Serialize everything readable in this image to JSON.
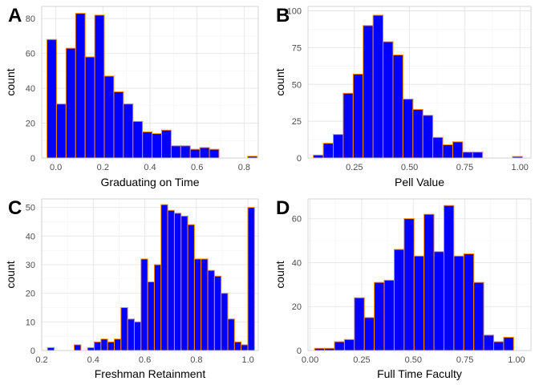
{
  "colors": {
    "bar_fill": "#0000ff",
    "bar_outline": "#ff8c00",
    "grid": "#e5e5e5",
    "border": "#cccccc",
    "tick_text": "#4d4d4d"
  },
  "chart_data": [
    {
      "type": "bar",
      "panel": "A",
      "xlabel": "Graduating on Time",
      "ylabel": "count",
      "xlim": [
        -0.06,
        0.86
      ],
      "ylim": [
        0,
        87
      ],
      "x_ticks": [
        0.0,
        0.2,
        0.4,
        0.6,
        0.8
      ],
      "x_tick_labels": [
        "0.0",
        "0.2",
        "0.4",
        "0.6",
        "0.8"
      ],
      "y_ticks": [
        0,
        20,
        40,
        60,
        80
      ],
      "y_tick_labels": [
        "0",
        "20",
        "40",
        "60",
        "80"
      ],
      "bin_width": 0.0406,
      "bin_centers": [
        -0.0175,
        0.0231,
        0.0637,
        0.1043,
        0.1449,
        0.1855,
        0.2261,
        0.2667,
        0.3073,
        0.3479,
        0.3885,
        0.4291,
        0.4697,
        0.5103,
        0.5509,
        0.5915,
        0.6321,
        0.6727,
        0.7133,
        0.7539,
        0.7945,
        0.8351
      ],
      "values": [
        68,
        31,
        63,
        83,
        58,
        82,
        47,
        38,
        31,
        21,
        15,
        14,
        16,
        7,
        7,
        5,
        6,
        5,
        0,
        0,
        0,
        1
      ],
      "grid": true
    },
    {
      "type": "bar",
      "panel": "B",
      "xlabel": "Pell Value",
      "ylabel": "count",
      "xlim": [
        0.04,
        1.05
      ],
      "ylim": [
        0,
        103
      ],
      "x_ticks": [
        0.25,
        0.5,
        0.75,
        1.0
      ],
      "x_tick_labels": [
        "0.25",
        "0.50",
        "0.75",
        "1.00"
      ],
      "y_ticks": [
        0,
        25,
        50,
        75,
        100
      ],
      "y_tick_labels": [
        "0",
        "25",
        "50",
        "75",
        "100"
      ],
      "bin_width": 0.0451,
      "bin_centers": [
        0.0868,
        0.1319,
        0.177,
        0.2221,
        0.2672,
        0.3123,
        0.3574,
        0.4025,
        0.4476,
        0.4927,
        0.5378,
        0.5829,
        0.628,
        0.6731,
        0.7182,
        0.7633,
        0.8084,
        0.8535,
        0.8986,
        0.9437,
        0.9888
      ],
      "values": [
        2,
        10,
        16,
        44,
        57,
        90,
        97,
        79,
        70,
        40,
        33,
        29,
        14,
        9,
        11,
        4,
        4,
        0,
        0,
        0,
        1
      ],
      "grid": true
    },
    {
      "type": "bar",
      "panel": "C",
      "xlabel": "Freshman Retainment",
      "ylabel": "count",
      "xlim": [
        0.2,
        1.04
      ],
      "ylim": [
        0,
        53
      ],
      "x_ticks": [
        0.2,
        0.4,
        0.6,
        0.8,
        1.0
      ],
      "x_tick_labels": [
        "0.2",
        "0.4",
        "0.6",
        "0.8",
        "1.0"
      ],
      "y_ticks": [
        0,
        10,
        20,
        30,
        40,
        50
      ],
      "y_tick_labels": [
        "0",
        "10",
        "20",
        "30",
        "40",
        "50"
      ],
      "bin_width": 0.0259,
      "bin_centers": [
        0.2355,
        0.2614,
        0.2873,
        0.3132,
        0.3391,
        0.365,
        0.3909,
        0.4168,
        0.4427,
        0.4686,
        0.4945,
        0.5204,
        0.5463,
        0.5722,
        0.5981,
        0.624,
        0.6499,
        0.6758,
        0.7017,
        0.7276,
        0.7535,
        0.7794,
        0.8053,
        0.8312,
        0.8571,
        0.883,
        0.9089,
        0.9348,
        0.9607,
        0.9866,
        1.0125
      ],
      "values": [
        1,
        0,
        0,
        0,
        2,
        0,
        1,
        3,
        4,
        3,
        4,
        15,
        11,
        10,
        32,
        24,
        30,
        51,
        49,
        48,
        47,
        44,
        32,
        32,
        28,
        26,
        20,
        11,
        3,
        2,
        50
      ],
      "grid": true
    },
    {
      "type": "bar",
      "panel": "D",
      "xlabel": "Full Time Faculty",
      "ylabel": "count",
      "xlim": [
        -0.01,
        1.07
      ],
      "ylim": [
        0,
        69
      ],
      "x_ticks": [
        0.0,
        0.25,
        0.5,
        0.75,
        1.0
      ],
      "x_tick_labels": [
        "0.00",
        "0.25",
        "0.50",
        "0.75",
        "1.00"
      ],
      "y_ticks": [
        0,
        20,
        40,
        60
      ],
      "y_tick_labels": [
        "0",
        "20",
        "40",
        "60"
      ],
      "bin_width": 0.0482,
      "bin_centers": [
        0.0459,
        0.0941,
        0.1423,
        0.1905,
        0.2387,
        0.2869,
        0.3351,
        0.3833,
        0.4315,
        0.4797,
        0.5279,
        0.5761,
        0.6243,
        0.6725,
        0.7207,
        0.7689,
        0.8171,
        0.8653,
        0.9135,
        0.9617,
        1.0099
      ],
      "values": [
        1,
        1,
        4,
        5,
        24,
        15,
        31,
        32,
        46,
        60,
        43,
        62,
        45,
        66,
        43,
        44,
        31,
        7,
        4,
        6,
        0
      ],
      "grid": true
    }
  ]
}
